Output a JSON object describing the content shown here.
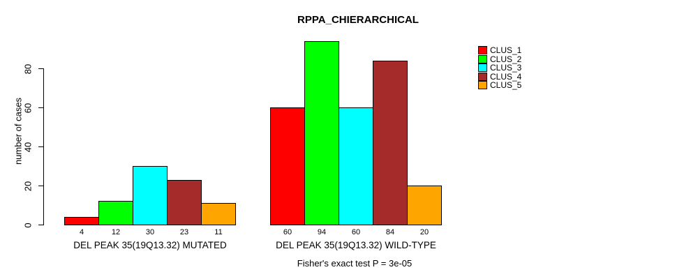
{
  "title": "RPPA_CHIERARCHICAL",
  "chart_data": {
    "type": "bar",
    "title": "RPPA_CHIERARCHICAL",
    "xlabel": "",
    "ylabel": "number of cases",
    "ylim": [
      0,
      95
    ],
    "yticks": [
      0,
      20,
      40,
      60,
      80
    ],
    "grid": false,
    "legend_position": "right",
    "categories": [
      "DEL PEAK 35(19Q13.32) MUTATED",
      "DEL PEAK 35(19Q13.32) WILD-TYPE"
    ],
    "series": [
      {
        "name": "CLUS_1",
        "color": "#FF0000",
        "values": [
          4,
          60
        ]
      },
      {
        "name": "CLUS_2",
        "color": "#00FF00",
        "values": [
          12,
          94
        ]
      },
      {
        "name": "CLUS_3",
        "color": "#00FFFF",
        "values": [
          30,
          60
        ]
      },
      {
        "name": "CLUS_4",
        "color": "#A52A2A",
        "values": [
          23,
          84
        ]
      },
      {
        "name": "CLUS_5",
        "color": "#FFA500",
        "values": [
          11,
          20
        ]
      }
    ],
    "bar_value_labels": true,
    "annotation": "Fisher's exact test P = 3e-05"
  }
}
